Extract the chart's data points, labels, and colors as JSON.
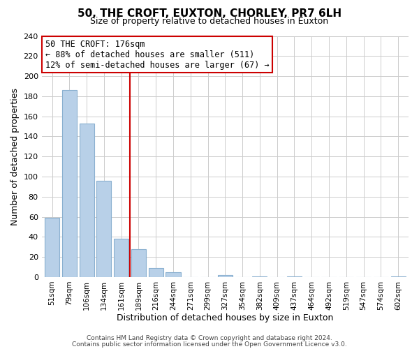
{
  "title": "50, THE CROFT, EUXTON, CHORLEY, PR7 6LH",
  "subtitle": "Size of property relative to detached houses in Euxton",
  "xlabel": "Distribution of detached houses by size in Euxton",
  "ylabel": "Number of detached properties",
  "bar_labels": [
    "51sqm",
    "79sqm",
    "106sqm",
    "134sqm",
    "161sqm",
    "189sqm",
    "216sqm",
    "244sqm",
    "271sqm",
    "299sqm",
    "327sqm",
    "354sqm",
    "382sqm",
    "409sqm",
    "437sqm",
    "464sqm",
    "492sqm",
    "519sqm",
    "547sqm",
    "574sqm",
    "602sqm"
  ],
  "bar_values": [
    59,
    186,
    153,
    96,
    38,
    28,
    9,
    5,
    0,
    0,
    2,
    0,
    1,
    0,
    1,
    0,
    0,
    0,
    0,
    0,
    1
  ],
  "bar_color": "#b8d0e8",
  "bar_edge_color": "#8ab0d0",
  "vline_x": 4.5,
  "vline_color": "#cc0000",
  "annotation_title": "50 THE CROFT: 176sqm",
  "annotation_line1": "← 88% of detached houses are smaller (511)",
  "annotation_line2": "12% of semi-detached houses are larger (67) →",
  "annotation_box_color": "#ffffff",
  "annotation_box_edge": "#cc0000",
  "ylim": [
    0,
    240
  ],
  "yticks": [
    0,
    20,
    40,
    60,
    80,
    100,
    120,
    140,
    160,
    180,
    200,
    220,
    240
  ],
  "footer1": "Contains HM Land Registry data © Crown copyright and database right 2024.",
  "footer2": "Contains public sector information licensed under the Open Government Licence v3.0.",
  "bg_color": "#ffffff",
  "grid_color": "#cccccc"
}
